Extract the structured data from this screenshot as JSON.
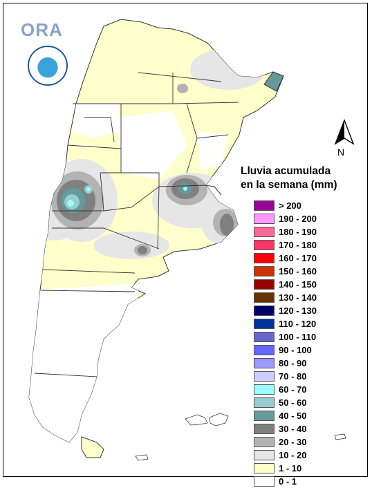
{
  "logo": {
    "text": "ORA",
    "seal_icon": "smn-argentina-seal-icon"
  },
  "north_arrow": {
    "label": "N"
  },
  "legend": {
    "title_line1": "Lluvia acumulada",
    "title_line2": "en la semana (mm)",
    "items": [
      {
        "label": "> 200",
        "color": "#990099"
      },
      {
        "label": "190 - 200",
        "color": "#ff99ff"
      },
      {
        "label": "180 - 190",
        "color": "#ff6699"
      },
      {
        "label": "170 - 180",
        "color": "#ff3366"
      },
      {
        "label": "160 - 170",
        "color": "#ff0000"
      },
      {
        "label": "150 - 160",
        "color": "#cc3300"
      },
      {
        "label": "140 - 150",
        "color": "#990000"
      },
      {
        "label": "130 - 140",
        "color": "#663300"
      },
      {
        "label": "120 - 130",
        "color": "#000066"
      },
      {
        "label": "110 - 120",
        "color": "#003399"
      },
      {
        "label": "100 - 110",
        "color": "#6666cc"
      },
      {
        "label": "90 - 100",
        "color": "#6666ff"
      },
      {
        "label": "80 - 90",
        "color": "#9999ff"
      },
      {
        "label": "70 - 80",
        "color": "#ccccff"
      },
      {
        "label": "60 - 70",
        "color": "#99ffff"
      },
      {
        "label": "50 - 60",
        "color": "#99cccc"
      },
      {
        "label": "40 - 50",
        "color": "#669999"
      },
      {
        "label": "30 - 40",
        "color": "#808080"
      },
      {
        "label": "20 - 30",
        "color": "#b3b3b3"
      },
      {
        "label": "10 - 20",
        "color": "#e6e6e6"
      },
      {
        "label": "1 - 10",
        "color": "#ffffcc"
      },
      {
        "label": "0 - 1",
        "color": "#ffffff"
      }
    ]
  }
}
